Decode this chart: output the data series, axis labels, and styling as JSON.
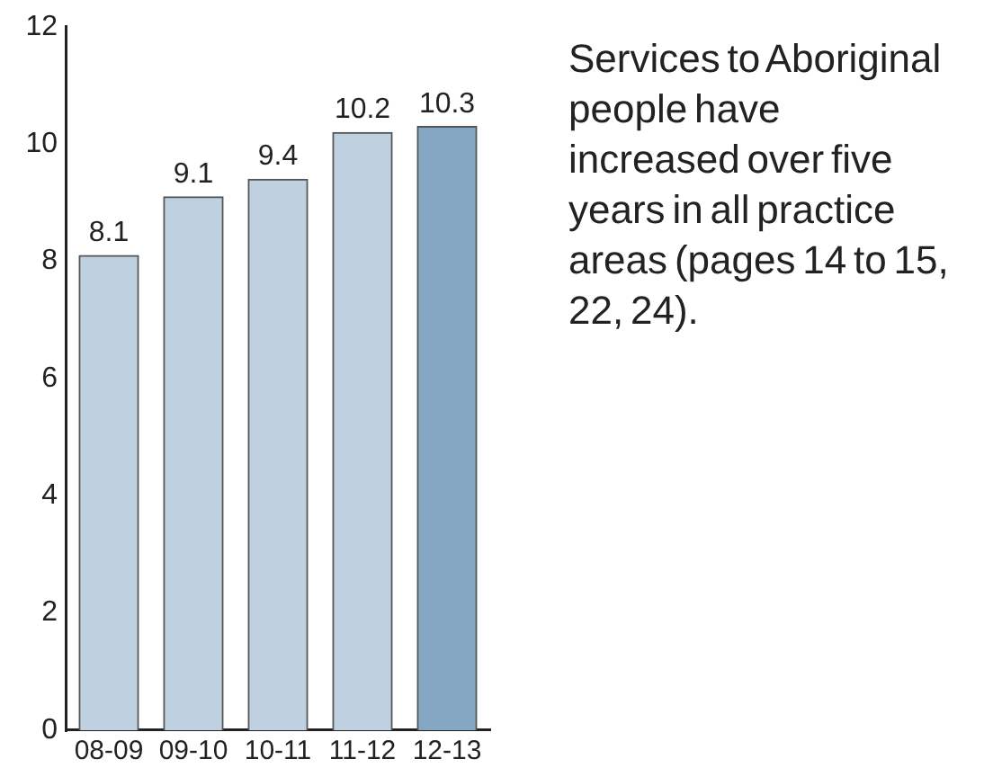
{
  "chart_data": {
    "type": "bar",
    "categories": [
      "08-09",
      "09-10",
      "10-11",
      "11-12",
      "12-13"
    ],
    "values": [
      8.1,
      9.1,
      9.4,
      10.2,
      10.3
    ],
    "colors": [
      "#bfd0e0",
      "#bfd0e0",
      "#bfd0e0",
      "#bfd0e0",
      "#84a8c4"
    ],
    "ylim": [
      0,
      12
    ],
    "yticks": [
      0,
      2,
      4,
      6,
      8,
      10,
      12
    ],
    "data_labels": true,
    "annotations": [
      "Services to Aboriginal people have increased over five years in all practice areas (pages 14 to 15, 22, 24)."
    ]
  }
}
